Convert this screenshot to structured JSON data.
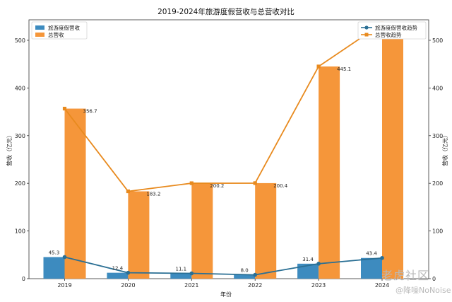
{
  "chart_data": {
    "type": "bar",
    "title": "2019-2024年旅游度假营收与总营收对比",
    "xlabel": "年份",
    "ylabel_left": "营收（亿元）",
    "ylabel_right": "营收（亿元）",
    "categories": [
      "2019",
      "2020",
      "2021",
      "2022",
      "2023",
      "2024"
    ],
    "ylim_left": [
      0,
      540
    ],
    "yticks_left": [
      0,
      100,
      200,
      300,
      400,
      500
    ],
    "ylim_right": [
      0,
      540
    ],
    "yticks_right": [
      0,
      100,
      200,
      300,
      400,
      500
    ],
    "series": [
      {
        "name": "旅游度假营收",
        "kind": "bar",
        "color": "#3d8bbf",
        "values": [
          45.3,
          12.4,
          11.1,
          8.0,
          31.4,
          43.4
        ],
        "labels": [
          "45.3",
          "12.4",
          "11.1",
          "8.0",
          "31.4",
          "43.4"
        ]
      },
      {
        "name": "总营收",
        "kind": "bar",
        "color": "#f5963a",
        "values": [
          356.7,
          183.2,
          200.2,
          200.4,
          445.1,
          535
        ],
        "labels": [
          "356.7",
          "183.2",
          "200.2",
          "200.4",
          "445.1",
          ""
        ]
      },
      {
        "name": "旅游度假营收趋势",
        "kind": "line",
        "color": "#2a6f94",
        "marker": "circle",
        "values": [
          45.3,
          12.4,
          11.1,
          8.0,
          31.4,
          43.4
        ]
      },
      {
        "name": "总营收趋势",
        "kind": "line",
        "color": "#e88a1e",
        "marker": "square",
        "values": [
          356.7,
          183.2,
          200.2,
          200.4,
          445.1,
          535
        ]
      }
    ],
    "legend_left_position": "top-left",
    "legend_right_position": "top-right",
    "grid": false
  },
  "watermark": {
    "site": "老虎社区",
    "user": "@降噪NoNoise"
  }
}
